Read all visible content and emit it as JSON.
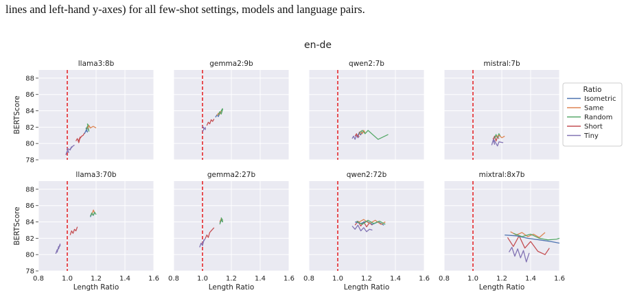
{
  "caption": "lines and left-hand y-axes) for all few-shot settings, models and language pairs.",
  "figure_title": "en-de",
  "legend": {
    "title": "Ratio",
    "entries": [
      {
        "name": "Isometric",
        "color": "#4c72b0"
      },
      {
        "name": "Same",
        "color": "#dd8452"
      },
      {
        "name": "Random",
        "color": "#55a868"
      },
      {
        "name": "Short",
        "color": "#c44e52"
      },
      {
        "name": "Tiny",
        "color": "#8172b3"
      }
    ]
  },
  "reference_line": {
    "x": 1.0,
    "color": "#e41a1c",
    "style": "dashed"
  },
  "chart_data": [
    {
      "type": "line",
      "title": "llama3:8b",
      "xlabel": "",
      "ylabel": "BERTScore",
      "xlim": [
        0.8,
        1.6
      ],
      "ylim": [
        78,
        89
      ],
      "xticks": [],
      "yticks": [
        "78",
        "80",
        "82",
        "84",
        "86",
        "88"
      ],
      "series": [
        {
          "name": "Tiny",
          "x": [
            0.99,
            1.0,
            1.01,
            1.0,
            1.02,
            1.03,
            1.02,
            1.04,
            1.05
          ],
          "y": [
            78.6,
            79.1,
            78.9,
            79.4,
            79.2,
            79.6,
            79.3,
            79.7,
            79.8
          ]
        },
        {
          "name": "Short",
          "x": [
            1.06,
            1.07,
            1.08,
            1.09,
            1.08,
            1.1,
            1.11,
            1.12
          ],
          "y": [
            80.3,
            80.6,
            80.1,
            80.8,
            80.4,
            80.9,
            81.0,
            81.3
          ]
        },
        {
          "name": "Isometric",
          "x": [
            1.12,
            1.13,
            1.14,
            1.13,
            1.15
          ],
          "y": [
            81.2,
            81.6,
            81.4,
            81.9,
            81.7
          ]
        },
        {
          "name": "Random",
          "x": [
            1.13,
            1.14,
            1.15,
            1.14,
            1.16,
            1.15
          ],
          "y": [
            81.7,
            82.1,
            81.5,
            82.4,
            81.9,
            82.2
          ]
        },
        {
          "name": "Same",
          "x": [
            1.14,
            1.15,
            1.16,
            1.18,
            1.2
          ],
          "y": [
            81.8,
            82.2,
            81.9,
            82.1,
            81.9
          ]
        }
      ]
    },
    {
      "type": "line",
      "title": "gemma2:9b",
      "xlabel": "",
      "ylabel": "",
      "xlim": [
        0.8,
        1.6
      ],
      "ylim": [
        78,
        89
      ],
      "xticks": [],
      "yticks": [],
      "series": [
        {
          "name": "Tiny",
          "x": [
            1.0,
            1.01,
            1.0,
            1.02,
            1.02
          ],
          "y": [
            81.4,
            81.8,
            82.1,
            81.7,
            82.0
          ]
        },
        {
          "name": "Short",
          "x": [
            1.03,
            1.04,
            1.05,
            1.06,
            1.07,
            1.08
          ],
          "y": [
            82.2,
            82.6,
            82.4,
            82.9,
            82.7,
            83.0
          ]
        },
        {
          "name": "Isometric",
          "x": [
            1.09,
            1.1,
            1.11,
            1.12,
            1.13
          ],
          "y": [
            83.2,
            83.5,
            83.3,
            83.7,
            83.9
          ]
        },
        {
          "name": "Same",
          "x": [
            1.1,
            1.11,
            1.12,
            1.13
          ],
          "y": [
            83.4,
            83.7,
            83.6,
            84.0
          ]
        },
        {
          "name": "Random",
          "x": [
            1.11,
            1.12,
            1.13,
            1.14,
            1.13,
            1.14
          ],
          "y": [
            83.5,
            83.9,
            83.6,
            84.2,
            84.0,
            84.3
          ]
        }
      ]
    },
    {
      "type": "line",
      "title": "qwen2:7b",
      "xlabel": "",
      "ylabel": "",
      "xlim": [
        0.8,
        1.6
      ],
      "ylim": [
        78,
        89
      ],
      "xticks": [],
      "yticks": [],
      "series": [
        {
          "name": "Tiny",
          "x": [
            1.1,
            1.11,
            1.12,
            1.13,
            1.14,
            1.15
          ],
          "y": [
            80.6,
            80.9,
            80.5,
            81.0,
            80.7,
            80.9
          ]
        },
        {
          "name": "Short",
          "x": [
            1.12,
            1.13,
            1.14,
            1.15,
            1.16
          ],
          "y": [
            80.9,
            81.2,
            80.8,
            81.4,
            81.0
          ]
        },
        {
          "name": "Isometric",
          "x": [
            1.14,
            1.15,
            1.16,
            1.17
          ],
          "y": [
            81.0,
            81.3,
            81.1,
            81.4
          ]
        },
        {
          "name": "Same",
          "x": [
            1.15,
            1.16,
            1.17,
            1.18,
            1.19
          ],
          "y": [
            81.1,
            81.5,
            81.2,
            81.6,
            81.3
          ]
        },
        {
          "name": "Random",
          "x": [
            1.15,
            1.17,
            1.19,
            1.21,
            1.28,
            1.35
          ],
          "y": [
            81.3,
            81.6,
            81.2,
            81.6,
            80.5,
            81.1
          ]
        }
      ]
    },
    {
      "type": "line",
      "title": "mistral:7b",
      "xlabel": "",
      "ylabel": "",
      "xlim": [
        0.8,
        1.6
      ],
      "ylim": [
        78,
        89
      ],
      "xticks": [],
      "yticks": [],
      "series": [
        {
          "name": "Tiny",
          "x": [
            1.13,
            1.14,
            1.15,
            1.14,
            1.16,
            1.17,
            1.18,
            1.21
          ],
          "y": [
            79.8,
            80.4,
            79.9,
            80.6,
            80.0,
            79.7,
            80.2,
            80.1
          ]
        },
        {
          "name": "Short",
          "x": [
            1.14,
            1.15,
            1.16,
            1.17,
            1.18
          ],
          "y": [
            80.5,
            80.9,
            80.3,
            80.8,
            80.6
          ]
        },
        {
          "name": "Isometric",
          "x": [
            1.15,
            1.16,
            1.17,
            1.18
          ],
          "y": [
            80.7,
            81.0,
            80.8,
            80.9
          ]
        },
        {
          "name": "Random",
          "x": [
            1.15,
            1.16,
            1.17,
            1.18,
            1.19
          ],
          "y": [
            80.6,
            81.1,
            80.7,
            81.2,
            80.9
          ]
        },
        {
          "name": "Same",
          "x": [
            1.16,
            1.18,
            1.2,
            1.22
          ],
          "y": [
            80.8,
            81.0,
            80.7,
            80.9
          ]
        }
      ]
    },
    {
      "type": "line",
      "title": "llama3:70b",
      "xlabel": "Length Ratio",
      "ylabel": "BERTScore",
      "xlim": [
        0.8,
        1.6
      ],
      "ylim": [
        78,
        89
      ],
      "xticks": [
        "0.8",
        "1.0",
        "1.2",
        "1.4",
        "1.6"
      ],
      "yticks": [
        "78",
        "80",
        "82",
        "84",
        "86",
        "88"
      ],
      "series": [
        {
          "name": "Tiny",
          "x": [
            0.92,
            0.93,
            0.93,
            0.94,
            0.94,
            0.95,
            0.95
          ],
          "y": [
            80.1,
            80.6,
            80.3,
            81.0,
            80.7,
            81.3,
            81.0
          ]
        },
        {
          "name": "Short",
          "x": [
            1.02,
            1.03,
            1.04,
            1.05,
            1.06,
            1.07
          ],
          "y": [
            82.4,
            82.9,
            82.6,
            83.1,
            82.9,
            83.4
          ]
        },
        {
          "name": "Isometric",
          "x": [
            1.16,
            1.17,
            1.18,
            1.19
          ],
          "y": [
            84.6,
            85.0,
            84.8,
            85.1
          ]
        },
        {
          "name": "Same",
          "x": [
            1.17,
            1.18,
            1.19,
            1.18
          ],
          "y": [
            84.9,
            85.4,
            85.1,
            85.5
          ]
        },
        {
          "name": "Random",
          "x": [
            1.16,
            1.17,
            1.18,
            1.19,
            1.2
          ],
          "y": [
            84.7,
            85.1,
            84.8,
            85.2,
            84.9
          ]
        }
      ]
    },
    {
      "type": "line",
      "title": "gemma2:27b",
      "xlabel": "Length Ratio",
      "ylabel": "",
      "xlim": [
        0.8,
        1.6
      ],
      "ylim": [
        78,
        89
      ],
      "xticks": [
        "0.8",
        "1.0",
        "1.2",
        "1.4",
        "1.6"
      ],
      "yticks": [],
      "series": [
        {
          "name": "Tiny",
          "x": [
            0.98,
            0.99,
            1.0,
            1.01,
            1.0,
            1.02
          ],
          "y": [
            80.9,
            81.4,
            81.1,
            81.8,
            81.4,
            82.0
          ]
        },
        {
          "name": "Short",
          "x": [
            1.02,
            1.03,
            1.04,
            1.05,
            1.06,
            1.08
          ],
          "y": [
            82.0,
            82.4,
            82.1,
            82.7,
            82.9,
            83.3
          ]
        },
        {
          "name": "Isometric",
          "x": [
            1.12,
            1.13,
            1.14
          ],
          "y": [
            83.9,
            84.2,
            84.0
          ]
        },
        {
          "name": "Same",
          "x": [
            1.12,
            1.13,
            1.14
          ],
          "y": [
            84.0,
            84.4,
            84.1
          ]
        },
        {
          "name": "Random",
          "x": [
            1.12,
            1.13,
            1.14,
            1.13,
            1.14
          ],
          "y": [
            83.7,
            84.3,
            84.0,
            84.5,
            84.2
          ]
        }
      ]
    },
    {
      "type": "line",
      "title": "qwen2:72b",
      "xlabel": "Length Ratio",
      "ylabel": "",
      "xlim": [
        0.8,
        1.6
      ],
      "ylim": [
        78,
        89
      ],
      "xticks": [
        "0.8",
        "1.0",
        "1.2",
        "1.4",
        "1.6"
      ],
      "yticks": [],
      "series": [
        {
          "name": "Tiny",
          "x": [
            1.1,
            1.12,
            1.14,
            1.16,
            1.18,
            1.2,
            1.22,
            1.24
          ],
          "y": [
            83.5,
            83.1,
            83.6,
            82.9,
            83.3,
            82.8,
            83.1,
            83.0
          ]
        },
        {
          "name": "Short",
          "x": [
            1.12,
            1.14,
            1.16,
            1.18,
            1.2,
            1.22,
            1.24
          ],
          "y": [
            83.6,
            84.1,
            83.5,
            84.0,
            83.4,
            83.9,
            83.6
          ]
        },
        {
          "name": "Isometric",
          "x": [
            1.12,
            1.16,
            1.2,
            1.24,
            1.28,
            1.32
          ],
          "y": [
            84.0,
            83.8,
            84.1,
            83.7,
            84.0,
            83.6
          ]
        },
        {
          "name": "Same",
          "x": [
            1.14,
            1.18,
            1.22,
            1.26,
            1.3,
            1.33
          ],
          "y": [
            83.9,
            84.3,
            83.8,
            84.2,
            83.7,
            84.0
          ]
        },
        {
          "name": "Random",
          "x": [
            1.13,
            1.17,
            1.21,
            1.25,
            1.29,
            1.33
          ],
          "y": [
            84.1,
            83.7,
            84.2,
            83.8,
            84.1,
            83.7
          ]
        }
      ]
    },
    {
      "type": "line",
      "title": "mixtral:8x7b",
      "xlabel": "Length Ratio",
      "ylabel": "",
      "xlim": [
        0.8,
        1.6
      ],
      "ylim": [
        78,
        89
      ],
      "xticks": [
        "0.8",
        "1.0",
        "1.2",
        "1.4",
        "1.6"
      ],
      "yticks": [],
      "series": [
        {
          "name": "Tiny",
          "x": [
            1.25,
            1.27,
            1.29,
            1.31,
            1.33,
            1.35,
            1.37,
            1.39
          ],
          "y": [
            80.3,
            80.9,
            79.8,
            80.7,
            79.6,
            80.5,
            79.1,
            80.2
          ]
        },
        {
          "name": "Short",
          "x": [
            1.24,
            1.28,
            1.32,
            1.36,
            1.4,
            1.45,
            1.5,
            1.53
          ],
          "y": [
            82.1,
            81.0,
            82.3,
            80.8,
            81.6,
            80.4,
            80.0,
            80.8
          ]
        },
        {
          "name": "Isometric",
          "x": [
            1.22,
            1.3,
            1.38,
            1.46,
            1.54,
            1.6
          ],
          "y": [
            82.4,
            82.3,
            82.0,
            81.8,
            81.6,
            81.4
          ]
        },
        {
          "name": "Same",
          "x": [
            1.26,
            1.3,
            1.34,
            1.38,
            1.42,
            1.46,
            1.5
          ],
          "y": [
            82.8,
            82.4,
            82.7,
            82.2,
            82.5,
            82.1,
            82.7
          ]
        },
        {
          "name": "Random",
          "x": [
            1.28,
            1.34,
            1.4,
            1.46,
            1.52,
            1.58,
            1.6
          ],
          "y": [
            82.6,
            82.2,
            82.5,
            82.0,
            81.8,
            81.9,
            82.0
          ]
        }
      ]
    }
  ]
}
